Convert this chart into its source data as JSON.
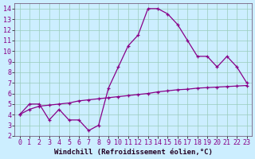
{
  "title": "",
  "xlabel": "Windchill (Refroidissement éolien,°C)",
  "ylabel": "",
  "bg_color": "#cceeff",
  "line_color": "#880088",
  "line1_x": [
    0,
    1,
    2,
    3,
    4,
    5,
    6,
    7,
    8,
    9,
    10,
    11,
    12,
    13,
    14,
    15,
    16,
    17,
    18,
    19,
    20,
    21,
    22,
    23
  ],
  "line1_y": [
    4.0,
    5.0,
    5.0,
    3.5,
    4.5,
    3.5,
    3.5,
    2.5,
    3.0,
    6.5,
    8.5,
    10.5,
    11.5,
    14.0,
    14.0,
    13.5,
    12.5,
    11.0,
    9.5,
    9.5,
    8.5,
    9.5,
    8.5,
    7.0
  ],
  "line2_x": [
    0,
    1,
    2,
    3,
    4,
    5,
    6,
    7,
    8,
    9,
    10,
    11,
    12,
    13,
    14,
    15,
    16,
    17,
    18,
    19,
    20,
    21,
    22,
    23
  ],
  "line2_y": [
    4.0,
    4.5,
    4.8,
    4.9,
    5.0,
    5.1,
    5.3,
    5.4,
    5.5,
    5.6,
    5.7,
    5.8,
    5.9,
    6.0,
    6.15,
    6.25,
    6.35,
    6.4,
    6.5,
    6.55,
    6.6,
    6.65,
    6.7,
    6.75
  ],
  "ylim": [
    2,
    14.5
  ],
  "xlim": [
    -0.5,
    23.5
  ],
  "yticks": [
    2,
    3,
    4,
    5,
    6,
    7,
    8,
    9,
    10,
    11,
    12,
    13,
    14
  ],
  "xticks": [
    0,
    1,
    2,
    3,
    4,
    5,
    6,
    7,
    8,
    9,
    10,
    11,
    12,
    13,
    14,
    15,
    16,
    17,
    18,
    19,
    20,
    21,
    22,
    23
  ],
  "grid_color": "#99ccbb",
  "axis_fontsize": 6.5,
  "tick_fontsize": 6.0,
  "xlabel_fontsize": 6.5
}
